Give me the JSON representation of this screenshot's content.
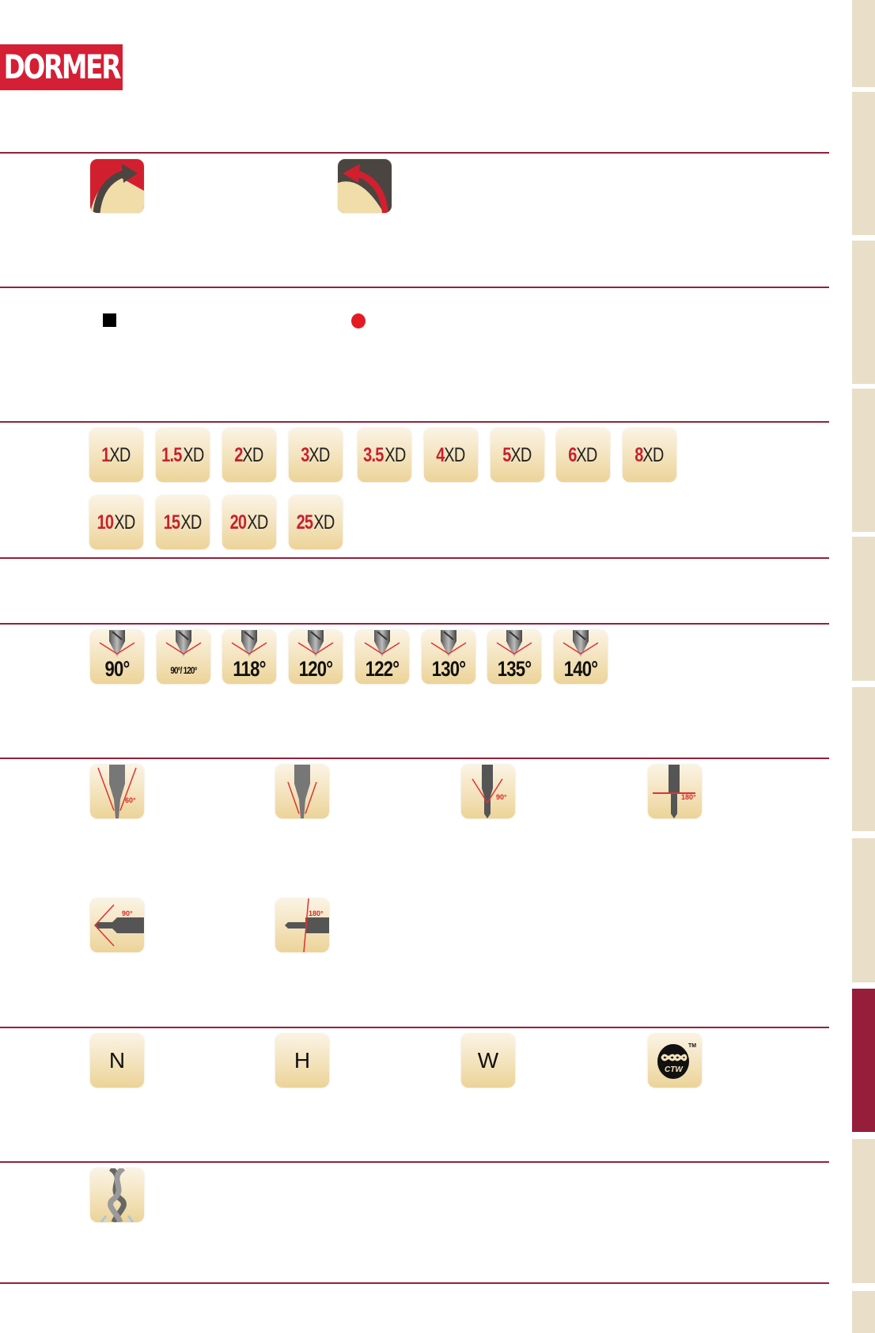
{
  "header": {
    "logo_text": "DORMER",
    "brand_color": "#d41f35",
    "rule_color": "#96203a"
  },
  "side_tabs": {
    "count": 10,
    "active_index": 7,
    "color": "#e9dec7",
    "active_color": "#961e3a"
  },
  "rotation": {
    "items": [
      {
        "icon": "right-hand-rotation-icon"
      },
      {
        "icon": "left-hand-rotation-icon"
      }
    ]
  },
  "markers": {
    "items": [
      {
        "icon": "black-square-icon"
      },
      {
        "icon": "red-dot-icon"
      }
    ]
  },
  "length_ratios": {
    "suffix": "XD",
    "values": [
      "1",
      "1.5",
      "2",
      "3",
      "3.5",
      "4",
      "5",
      "6",
      "8",
      "10",
      "15",
      "20",
      "25"
    ]
  },
  "point_angles": {
    "values": [
      "90°",
      "90°/ 120°",
      "118°",
      "120°",
      "122°",
      "130°",
      "135°",
      "140°"
    ]
  },
  "tip_forms": {
    "items": [
      {
        "icon": "countersink-60-icon",
        "label": "60°"
      },
      {
        "icon": "step-drill-icon",
        "label": ""
      },
      {
        "icon": "step-drill-90-icon",
        "label": "90°"
      },
      {
        "icon": "step-drill-180-icon",
        "label": "180°"
      },
      {
        "icon": "horizontal-step-90-icon",
        "label": "90°"
      },
      {
        "icon": "horizontal-step-180-icon",
        "label": "180°"
      }
    ]
  },
  "types": {
    "items": [
      "N",
      "H",
      "W"
    ],
    "ctw_label": "CTW",
    "ctw_tm": "TM"
  },
  "coolant": {
    "icon": "twist-drill-coolant-icon"
  }
}
